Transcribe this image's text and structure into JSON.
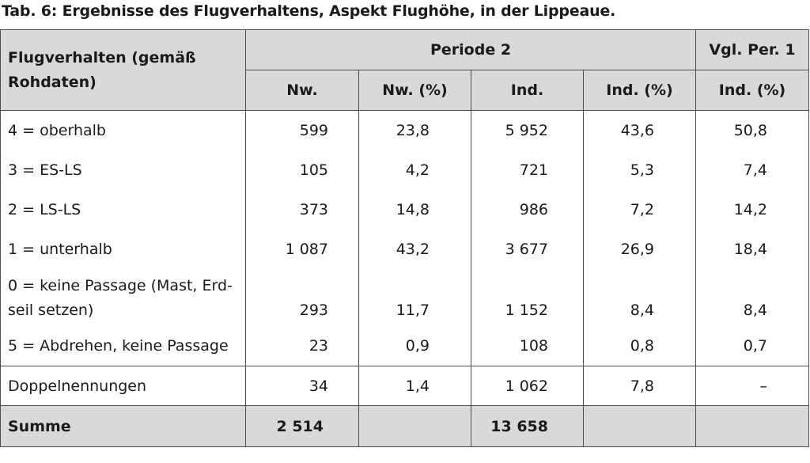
{
  "caption": "Tab. 6: Ergebnisse des Flugverhaltens, Aspekt Flughöhe, in der Lippeaue.",
  "table": {
    "row_header": "Flugverhalten (gemäß Rohdaten)",
    "group_header": "Periode 2",
    "compare_header": "Vgl. Per. 1",
    "columns": [
      "Nw.",
      "Nw. (%)",
      "Ind.",
      "Ind. (%)",
      "Ind. (%)"
    ],
    "rows": [
      {
        "label": "4 = oberhalb",
        "nw": "599",
        "nw_pct": "23,8",
        "ind": "5 952",
        "ind_pct": "43,6",
        "per1": "50,8"
      },
      {
        "label": "3 = ES-LS",
        "nw": "105",
        "nw_pct": "4,2",
        "ind": "721",
        "ind_pct": "5,3",
        "per1": "7,4"
      },
      {
        "label": "2 = LS-LS",
        "nw": "373",
        "nw_pct": "14,8",
        "ind": "986",
        "ind_pct": "7,2",
        "per1": "14,2"
      },
      {
        "label": "1 = unterhalb",
        "nw": "1 087",
        "nw_pct": "43,2",
        "ind": "3 677",
        "ind_pct": "26,9",
        "per1": "18,4"
      },
      {
        "label": "0 = keine Passage (Mast, Erd-seil setzen)",
        "nw": "293",
        "nw_pct": "11,7",
        "ind": "1 152",
        "ind_pct": "8,4",
        "per1": "8,4"
      },
      {
        "label": "5 = Abdrehen, keine Passage",
        "nw": "23",
        "nw_pct": "0,9",
        "ind": "108",
        "ind_pct": "0,8",
        "per1": "0,7"
      }
    ],
    "doppel": {
      "label": "Doppelnennungen",
      "nw": "34",
      "nw_pct": "1,4",
      "ind": "1 062",
      "ind_pct": "7,8",
      "per1": "–"
    },
    "summe": {
      "label": "Summe",
      "nw": "2 514",
      "ind": "13 658"
    }
  }
}
